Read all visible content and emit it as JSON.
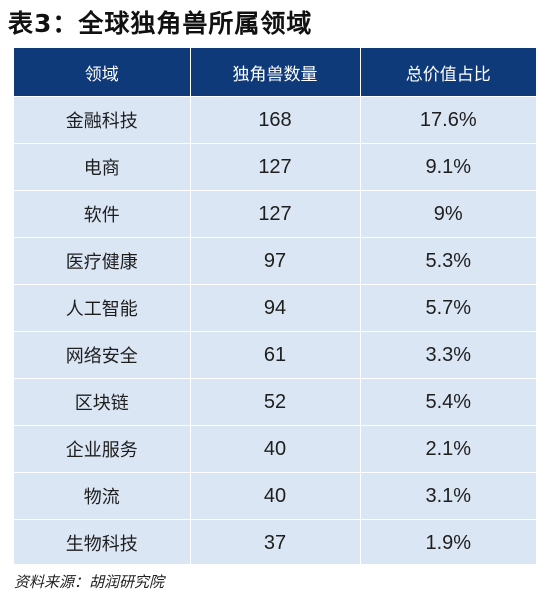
{
  "title": "表3：全球独角兽所属领域",
  "table": {
    "headers": [
      "领域",
      "独角兽数量",
      "总价值占比"
    ],
    "rows": [
      {
        "field": "金融科技",
        "count": "168",
        "share": "17.6%"
      },
      {
        "field": "电商",
        "count": "127",
        "share": "9.1%"
      },
      {
        "field": "软件",
        "count": "127",
        "share": "9%"
      },
      {
        "field": "医疗健康",
        "count": "97",
        "share": "5.3%"
      },
      {
        "field": "人工智能",
        "count": "94",
        "share": "5.7%"
      },
      {
        "field": "网络安全",
        "count": "61",
        "share": "3.3%"
      },
      {
        "field": "区块链",
        "count": "52",
        "share": "5.4%"
      },
      {
        "field": "企业服务",
        "count": "40",
        "share": "2.1%"
      },
      {
        "field": "物流",
        "count": "40",
        "share": "3.1%"
      },
      {
        "field": "生物科技",
        "count": "37",
        "share": "1.9%"
      }
    ]
  },
  "source": "资料来源：胡润研究院",
  "colors": {
    "header_bg": "#0f3a7a",
    "row_bg": "#dbe6f5"
  }
}
